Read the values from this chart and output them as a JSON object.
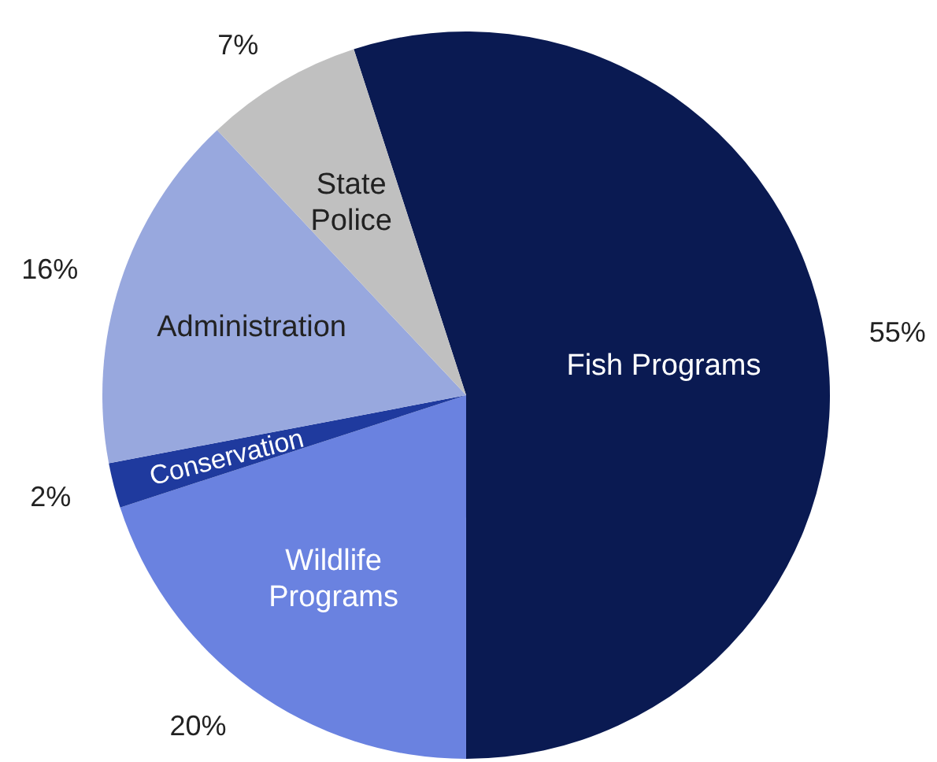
{
  "chart_data": {
    "type": "pie",
    "categories": [
      "Fish Programs",
      "Wildlife Programs",
      "Conservation",
      "Administration",
      "State Police"
    ],
    "values": [
      55,
      20,
      2,
      16,
      7
    ],
    "colors": [
      "#0a1a52",
      "#6a82e0",
      "#1f3a9e",
      "#98a8de",
      "#c0c0c0"
    ],
    "value_labels": [
      "55%",
      "20%",
      "2%",
      "16%",
      "7%"
    ]
  }
}
